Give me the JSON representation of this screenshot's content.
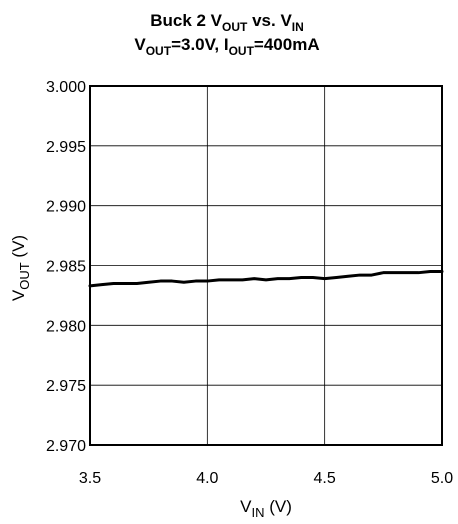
{
  "chart_data": {
    "type": "line",
    "title": {
      "line1": {
        "main": "Buck 2 V",
        "sub1": "OUT",
        "mid": " vs. V",
        "sub2": "IN"
      },
      "line2": {
        "v": "V",
        "vsub": "OUT",
        "vtext": "=3.0V, I",
        "isub": "OUT",
        "itext": "=400mA"
      }
    },
    "xlabel": {
      "main": "V",
      "sub": "IN",
      "unit": " (V)"
    },
    "ylabel": {
      "main": "V",
      "sub": "OUT",
      "unit": " (V)"
    },
    "xlim": [
      3.5,
      5.0
    ],
    "ylim": [
      2.97,
      3.0
    ],
    "xticks": [
      {
        "value": 3.5,
        "label": "3.5"
      },
      {
        "value": 4.0,
        "label": "4.0"
      },
      {
        "value": 4.5,
        "label": "4.5"
      },
      {
        "value": 5.0,
        "label": "5.0"
      }
    ],
    "yticks": [
      {
        "value": 2.97,
        "label": "2.970"
      },
      {
        "value": 2.975,
        "label": "2.975"
      },
      {
        "value": 2.98,
        "label": "2.980"
      },
      {
        "value": 2.985,
        "label": "2.985"
      },
      {
        "value": 2.99,
        "label": "2.990"
      },
      {
        "value": 2.995,
        "label": "2.995"
      },
      {
        "value": 3.0,
        "label": "3.000"
      }
    ],
    "grid": true,
    "series": [
      {
        "color": "#000000",
        "x": [
          3.5,
          3.55,
          3.6,
          3.65,
          3.7,
          3.75,
          3.8,
          3.85,
          3.9,
          3.95,
          4.0,
          4.05,
          4.1,
          4.15,
          4.2,
          4.25,
          4.3,
          4.35,
          4.4,
          4.45,
          4.5,
          4.55,
          4.6,
          4.65,
          4.7,
          4.75,
          4.8,
          4.85,
          4.9,
          4.95,
          5.0
        ],
        "y": [
          2.9833,
          2.9834,
          2.9835,
          2.9835,
          2.9835,
          2.9836,
          2.9837,
          2.9837,
          2.9836,
          2.9837,
          2.9837,
          2.9838,
          2.9838,
          2.9838,
          2.9839,
          2.9838,
          2.9839,
          2.9839,
          2.984,
          2.984,
          2.9839,
          2.984,
          2.9841,
          2.9842,
          2.9842,
          2.9844,
          2.9844,
          2.9844,
          2.9844,
          2.9845,
          2.9845
        ]
      }
    ]
  }
}
